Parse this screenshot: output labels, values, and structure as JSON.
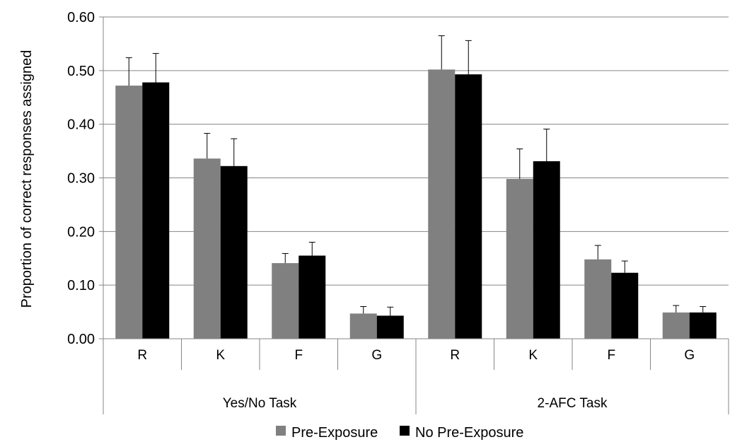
{
  "chart_data": {
    "type": "bar",
    "ylabel": "Proportion of correct responses assigned",
    "ylim": [
      0,
      0.6
    ],
    "yticks": [
      "0.00",
      "0.10",
      "0.20",
      "0.30",
      "0.40",
      "0.50",
      "0.60"
    ],
    "grid": true,
    "legend_position": "bottom",
    "groups": [
      {
        "label": "Yes/No Task",
        "categories": [
          "R",
          "K",
          "F",
          "G"
        ]
      },
      {
        "label": "2-AFC Task",
        "categories": [
          "R",
          "K",
          "F",
          "G"
        ]
      }
    ],
    "series": [
      {
        "name": "Pre-Exposure",
        "color": "#808080",
        "values": [
          0.472,
          0.336,
          0.141,
          0.047,
          0.502,
          0.298,
          0.148,
          0.049
        ],
        "errors": [
          0.052,
          0.047,
          0.018,
          0.013,
          0.063,
          0.056,
          0.026,
          0.013
        ]
      },
      {
        "name": "No Pre-Exposure",
        "color": "#000000",
        "values": [
          0.478,
          0.322,
          0.155,
          0.043,
          0.493,
          0.331,
          0.123,
          0.049
        ],
        "errors": [
          0.054,
          0.051,
          0.025,
          0.016,
          0.063,
          0.06,
          0.022,
          0.011
        ]
      }
    ]
  }
}
